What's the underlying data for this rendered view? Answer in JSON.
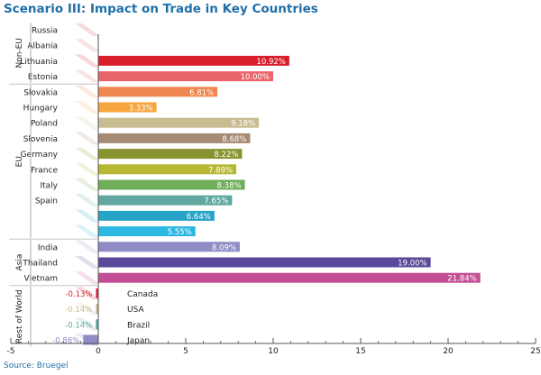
{
  "title": "Scenario III: Impact on Trade in Key Countries",
  "source": "Source: Bruegel",
  "colors": {
    "title": "#1f6fa8",
    "axis": "#555555",
    "label": "#222222"
  },
  "chart_data": {
    "type": "bar",
    "orientation": "horizontal",
    "title": "Scenario III: Impact on Trade in Key Countries",
    "xlim": [
      -5,
      25
    ],
    "xticks": [
      -5,
      0,
      5,
      10,
      15,
      20,
      25
    ],
    "grid": false,
    "legend": "none",
    "value_format": "percent, 2 decimals",
    "groups": [
      {
        "name": "Non-EU",
        "categories": [
          {
            "name": "Russia",
            "value": null,
            "label": "",
            "color": "#c8453c"
          },
          {
            "name": "Albania",
            "value": null,
            "label": "",
            "color": "#d86a5e"
          },
          {
            "name": "Lithuania",
            "value": 10.92,
            "label": "10.92%",
            "color": "#d81e2c"
          },
          {
            "name": "Estonia",
            "value": 10.0,
            "label": "10.00%",
            "color": "#e9656a"
          }
        ]
      },
      {
        "name": "EU",
        "categories": [
          {
            "name": "Slovakia",
            "value": 6.81,
            "label": "6.81%",
            "color": "#ee8650"
          },
          {
            "name": "Hungary",
            "value": 3.33,
            "label": "3.33%",
            "color": "#f7a53d"
          },
          {
            "name": "Poland",
            "value": 9.18,
            "label": "9.18%",
            "color": "#c8bc90"
          },
          {
            "name": "Slovenia",
            "value": 8.68,
            "label": "8.68%",
            "color": "#a68b74"
          },
          {
            "name": "Germany",
            "value": 8.22,
            "label": "8.22%",
            "color": "#899431"
          },
          {
            "name": "France",
            "value": 7.89,
            "label": "7.89%",
            "color": "#b6b833"
          },
          {
            "name": "Italy",
            "value": 8.38,
            "label": "8.38%",
            "color": "#6fad5b"
          },
          {
            "name": "Spain",
            "value": 7.65,
            "label": "7.65%",
            "color": "#5fa7a0"
          },
          {
            "name": "",
            "value": 6.64,
            "label": "6.64%",
            "color": "#27a3c8"
          },
          {
            "name": "",
            "value": 5.55,
            "label": "5.55%",
            "color": "#2cb8e0"
          }
        ]
      },
      {
        "name": "Asia",
        "categories": [
          {
            "name": "India",
            "value": 8.09,
            "label": "8.09%",
            "color": "#8f8cc6"
          },
          {
            "name": "Thailand",
            "value": 19.0,
            "label": "19.00%",
            "color": "#5a4898"
          },
          {
            "name": "Vietnam",
            "value": 21.84,
            "label": "21.84%",
            "color": "#c24f96"
          }
        ]
      },
      {
        "name": "Rest of World",
        "categories": [
          {
            "name": "Canada",
            "value": -0.13,
            "label": "-0.13%",
            "color": "#d81e2c"
          },
          {
            "name": "USA",
            "value": -0.14,
            "label": "-0.14%",
            "color": "#c8bc90"
          },
          {
            "name": "Brazil",
            "value": -0.14,
            "label": "-0.14%",
            "color": "#5fa7a0"
          },
          {
            "name": "Japan",
            "value": -0.86,
            "label": "-0.86%",
            "color": "#8f8cc6"
          }
        ]
      }
    ]
  }
}
